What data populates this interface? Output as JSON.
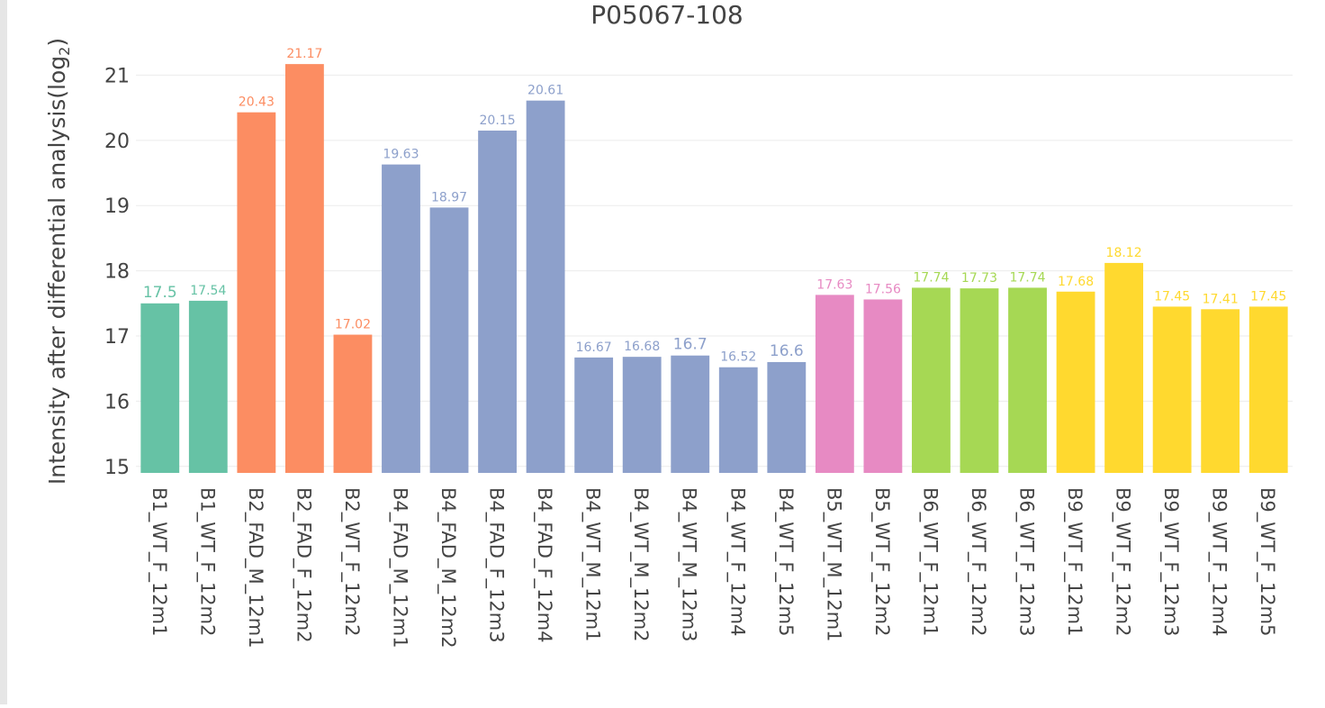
{
  "chart_data": {
    "type": "bar",
    "title": "P05067-108",
    "ylabel": "Intensity after differential analysis(log",
    "ylabel_sub": "2",
    "ylabel_close": ")",
    "ylim": [
      14.9,
      21.6
    ],
    "yticks": [
      15,
      16,
      17,
      18,
      19,
      20,
      21
    ],
    "grid": true,
    "categories": [
      "B1_WT_F_12m1",
      "B1_WT_F_12m2",
      "B2_FAD_M_12m1",
      "B2_FAD_F_12m2",
      "B2_WT_F_12m2",
      "B4_FAD_M_12m1",
      "B4_FAD_M_12m2",
      "B4_FAD_F_12m3",
      "B4_FAD_F_12m4",
      "B4_WT_M_12m1",
      "B4_WT_M_12m2",
      "B4_WT_M_12m3",
      "B4_WT_F_12m4",
      "B4_WT_F_12m5",
      "B5_WT_M_12m1",
      "B5_WT_F_12m2",
      "B6_WT_F_12m1",
      "B6_WT_F_12m2",
      "B6_WT_F_12m3",
      "B9_WT_F_12m1",
      "B9_WT_F_12m2",
      "B9_WT_F_12m3",
      "B9_WT_F_12m4",
      "B9_WT_F_12m5"
    ],
    "values": [
      17.5,
      17.54,
      20.43,
      21.17,
      17.02,
      19.63,
      18.97,
      20.15,
      20.61,
      16.67,
      16.68,
      16.7,
      16.52,
      16.6,
      17.63,
      17.56,
      17.74,
      17.73,
      17.74,
      17.68,
      18.12,
      17.45,
      17.41,
      17.45
    ],
    "labels": [
      "17.5",
      "17.54",
      "20.43",
      "21.17",
      "17.02",
      "19.63",
      "18.97",
      "20.15",
      "20.61",
      "16.67",
      "16.68",
      "16.7",
      "16.52",
      "16.6",
      "17.63",
      "17.56",
      "17.74",
      "17.73",
      "17.74",
      "17.68",
      "18.12",
      "17.45",
      "17.41",
      "17.45"
    ],
    "colors": [
      "#66c2a5",
      "#66c2a5",
      "#fc8d62",
      "#fc8d62",
      "#fc8d62",
      "#8da0cb",
      "#8da0cb",
      "#8da0cb",
      "#8da0cb",
      "#8da0cb",
      "#8da0cb",
      "#8da0cb",
      "#8da0cb",
      "#8da0cb",
      "#e78ac3",
      "#e78ac3",
      "#a6d854",
      "#a6d854",
      "#a6d854",
      "#ffd92f",
      "#ffd92f",
      "#ffd92f",
      "#ffd92f",
      "#ffd92f"
    ],
    "gridline_color": "#ebebeb"
  }
}
